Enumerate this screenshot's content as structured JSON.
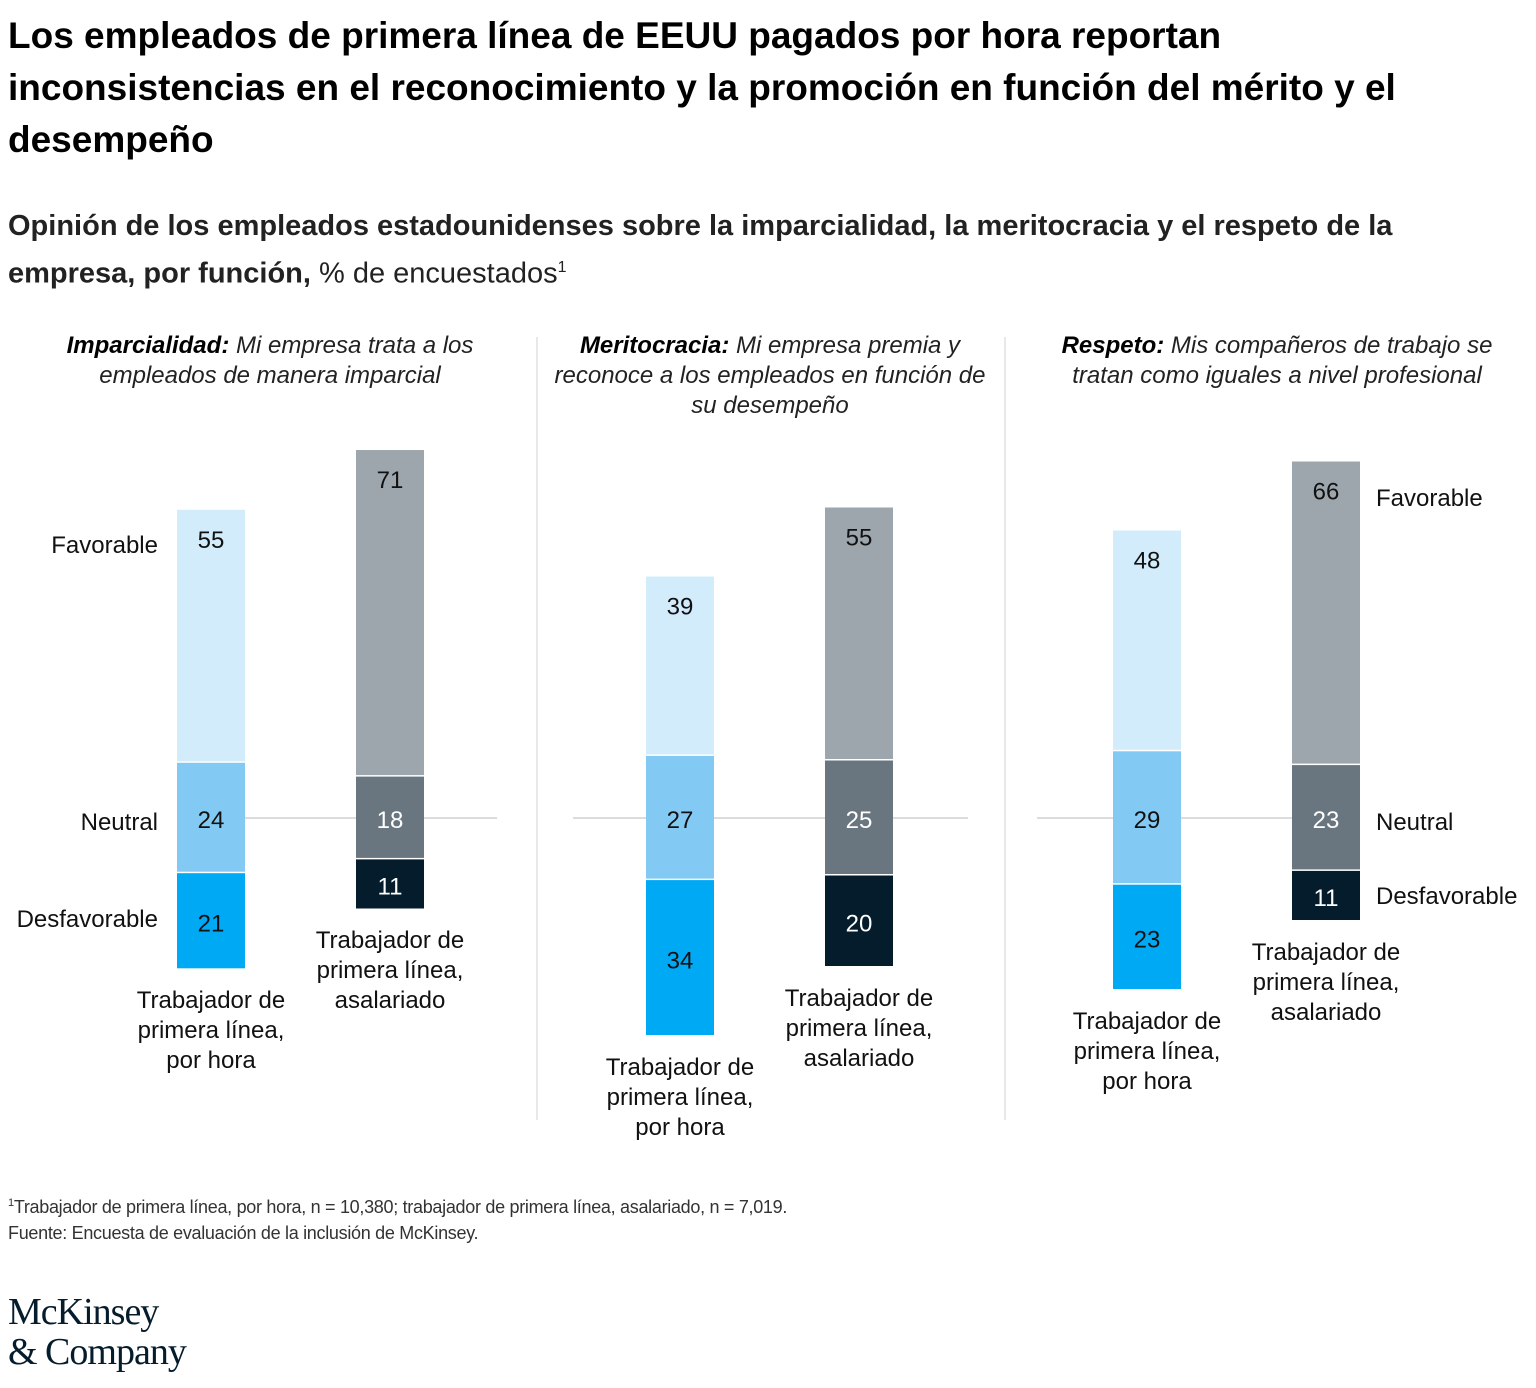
{
  "title": "Los empleados de primera línea de EEUU pagados por hora reportan inconsistencias en el reconocimiento y la promoción en función del mérito y el desempeño",
  "subtitle_bold": "Opinión de los empleados estadounidenses sobre la imparcialidad, la meritocracia y el respeto de la empresa, por función,",
  "subtitle_normal": " % de encuestados",
  "subtitle_sup": "1",
  "footnote_sup": "1",
  "footnote": "Trabajador de primera línea, por hora, n = 10,380; trabajador de primera línea, asalariado, n = 7,019.",
  "source": "Fuente: Encuesta de evaluación de la inclusión de McKinsey.",
  "logo": "McKinsey & Company",
  "colors": {
    "hourly": {
      "favorable": "#d2ecfb",
      "neutral": "#82c9f3",
      "desfavorable": "#00a9f4"
    },
    "salaried": {
      "favorable": "#9ea6ad",
      "neutral": "#69767f",
      "desfavorable": "#051c2c"
    },
    "divider": "#d0d0d0"
  },
  "chart_data": {
    "type": "bar",
    "stacking": "diverging",
    "row_labels": [
      "Favorable",
      "Neutral",
      "Desfavorable"
    ],
    "categories": [
      "Trabajador de primera línea, por hora",
      "Trabajador de primera línea, asalariado"
    ],
    "panels": [
      {
        "title_bold": "Imparcialidad:",
        "title_rest": " Mi empresa trata a los empleados de manera imparcial",
        "cat_labels": [
          "Trabajador de primera línea, por hora",
          "Trabajador de primera línea, asalariado"
        ],
        "series": [
          {
            "name": "Favorable",
            "values": [
              55,
              71
            ]
          },
          {
            "name": "Neutral",
            "values": [
              24,
              18
            ]
          },
          {
            "name": "Desfavorable",
            "values": [
              21,
              11
            ]
          }
        ]
      },
      {
        "title_bold": "Meritocracia:",
        "title_rest": " Mi empresa premia y reconoce a los empleados en función de su desempeño",
        "cat_labels": [
          "Trabajador de primera línea, por hora",
          "Trabajador de primera línea, asalariado"
        ],
        "series": [
          {
            "name": "Favorable",
            "values": [
              39,
              55
            ]
          },
          {
            "name": "Neutral",
            "values": [
              27,
              25
            ]
          },
          {
            "name": "Desfavorable",
            "values": [
              34,
              20
            ]
          }
        ]
      },
      {
        "title_bold": "Respeto:",
        "title_rest": " Mis compañeros de trabajo se tratan como iguales a nivel profesional",
        "cat_labels": [
          "Trabajador de primera línea, por hora",
          "Trabajador de primera línea, asalariado"
        ],
        "series": [
          {
            "name": "Favorable",
            "values": [
              48,
              66
            ]
          },
          {
            "name": "Neutral",
            "values": [
              29,
              23
            ]
          },
          {
            "name": "Desfavorable",
            "values": [
              23,
              11
            ]
          }
        ]
      }
    ]
  }
}
